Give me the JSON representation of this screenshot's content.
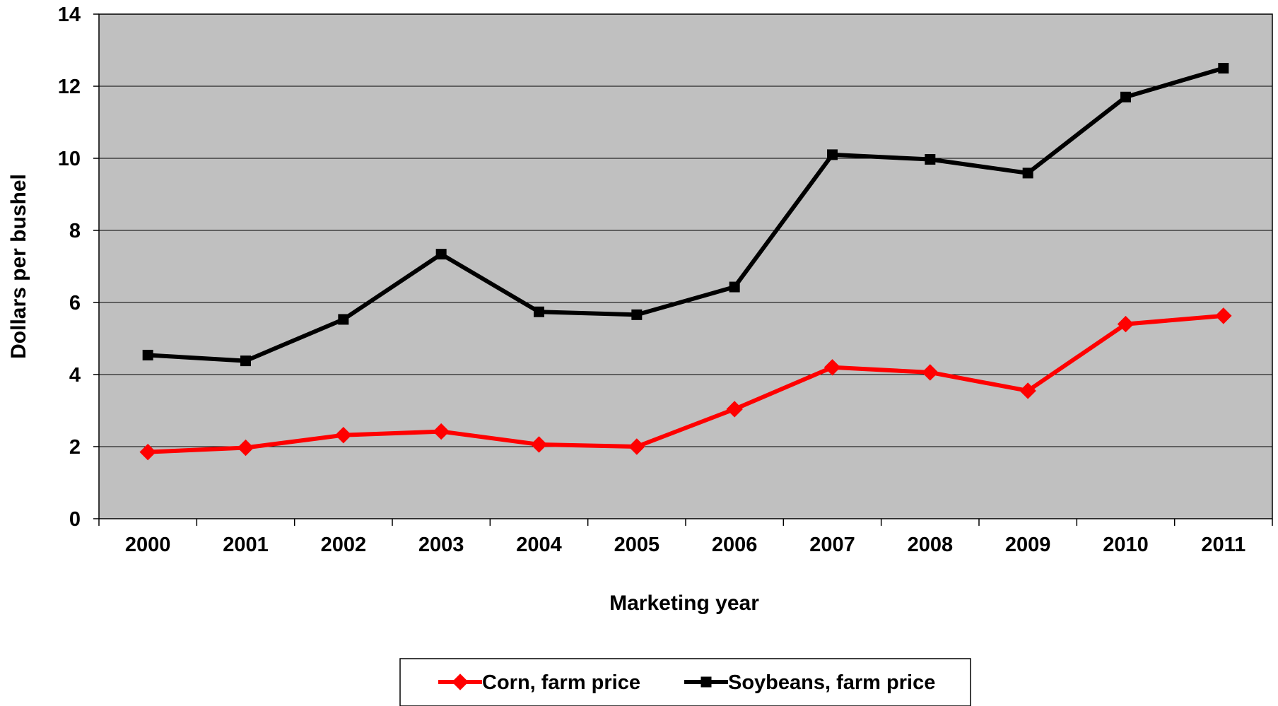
{
  "chart_data": {
    "type": "line",
    "title": "",
    "xlabel": "Marketing year",
    "ylabel": "Dollars per bushel",
    "categories": [
      "2000",
      "2001",
      "2002",
      "2003",
      "2004",
      "2005",
      "2006",
      "2007",
      "2008",
      "2009",
      "2010",
      "2011"
    ],
    "ylim": [
      0,
      14
    ],
    "yticks": [
      "0",
      "2",
      "4",
      "6",
      "8",
      "10",
      "12",
      "14"
    ],
    "grid": true,
    "legend": "bottom-center",
    "plot_background": "#c0c0c0",
    "series": [
      {
        "name": "Corn, farm price",
        "color": "#ff0000",
        "marker": "diamond",
        "values": [
          1.85,
          1.97,
          2.32,
          2.42,
          2.06,
          2.0,
          3.04,
          4.2,
          4.06,
          3.55,
          5.4,
          5.63
        ]
      },
      {
        "name": "Soybeans, farm price",
        "color": "#000000",
        "marker": "square",
        "values": [
          4.54,
          4.38,
          5.53,
          7.34,
          5.74,
          5.66,
          6.43,
          10.1,
          9.97,
          9.59,
          11.7,
          12.5
        ]
      }
    ]
  }
}
